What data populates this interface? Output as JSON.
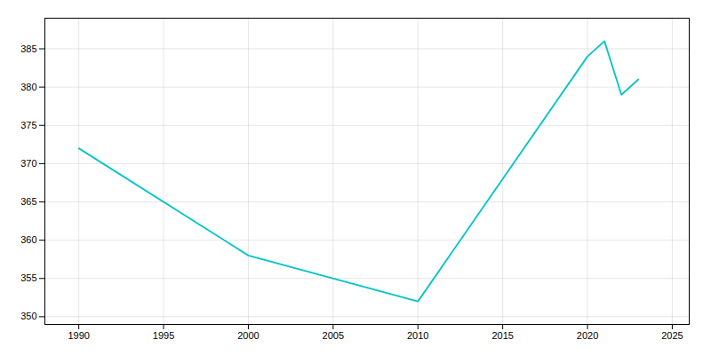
{
  "chart_data": {
    "type": "line",
    "x": [
      1990,
      2000,
      2010,
      2020,
      2021,
      2022,
      2023
    ],
    "values": [
      372,
      358,
      352,
      384,
      386,
      379,
      381
    ],
    "color": "#00C5C8",
    "xlim": [
      1988,
      2026
    ],
    "ylim": [
      349,
      389
    ],
    "xticks": [
      1990,
      1995,
      2000,
      2005,
      2010,
      2015,
      2020,
      2025
    ],
    "yticks": [
      350,
      355,
      360,
      365,
      370,
      375,
      380,
      385
    ],
    "grid": true
  }
}
